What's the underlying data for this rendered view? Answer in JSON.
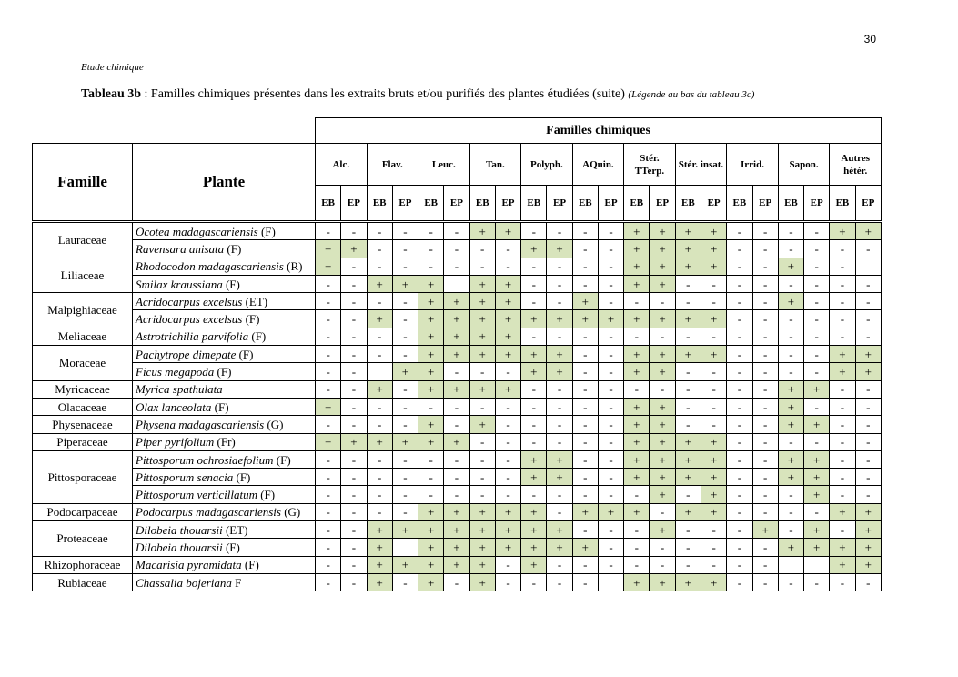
{
  "page_number": "30",
  "running_header": "Etude chimique",
  "caption": {
    "label": "Tableau 3b",
    "text": ": Familles chimiques présentes dans les extraits bruts et/ou purifiés des plantes étudiées (suite)",
    "note": "(Légende au bas du tableau 3c)"
  },
  "table": {
    "header": {
      "family": "Famille",
      "plant": "Plante",
      "group_title": "Familles chimiques",
      "groups": [
        "Alc.",
        "Flav.",
        "Leuc.",
        "Tan.",
        "Polyph.",
        "AQuin.",
        "Stér. TTerp.",
        "Stér. insat.",
        "Irrid.",
        "Sapon.",
        "Autres hétér."
      ],
      "sub": [
        "EB",
        "EP"
      ]
    },
    "families": [
      {
        "name": "Lauraceae",
        "plants": [
          {
            "name": "Ocotea madagascariensis",
            "part": "(F)",
            "cells": [
              "-",
              "-",
              "-",
              "-",
              "-",
              "-",
              "+",
              "+",
              "-",
              "-",
              "-",
              "-",
              "+",
              "+",
              "+",
              "+",
              "-",
              "-",
              "-",
              "-",
              "+",
              "+"
            ]
          },
          {
            "name": "Ravensara anisata",
            "part": "(F)",
            "cells": [
              "+",
              "+",
              "-",
              "-",
              "-",
              "-",
              "-",
              "-",
              "+",
              "+",
              "-",
              "-",
              "+",
              "+",
              "+",
              "+",
              "-",
              "-",
              "-",
              "-",
              "-",
              "-"
            ]
          }
        ]
      },
      {
        "name": "Liliaceae",
        "plants": [
          {
            "name": "Rhodocodon madagascariensis",
            "part": "(R)",
            "cells": [
              "+",
              "-",
              "-",
              "-",
              "-",
              "-",
              "-",
              "-",
              "-",
              "-",
              "-",
              "-",
              "+",
              "+",
              "+",
              "+",
              "-",
              "-",
              "+",
              "-",
              "-",
              null
            ]
          },
          {
            "name": "Smilax kraussiana",
            "part": "(F)",
            "cells": [
              "-",
              "-",
              "+",
              "+",
              "+",
              null,
              "+",
              "+",
              "-",
              "-",
              "-",
              "-",
              "+",
              "+",
              "-",
              "-",
              "-",
              "-",
              "-",
              "-",
              "-",
              "-"
            ]
          }
        ]
      },
      {
        "name": "Malpighiaceae",
        "plants": [
          {
            "name": "Acridocarpus excelsus",
            "part": "(ET)",
            "cells": [
              "-",
              "-",
              "-",
              "-",
              "+",
              "+",
              "+",
              "+",
              "-",
              "-",
              "+",
              "-",
              "-",
              "-",
              "-",
              "-",
              "-",
              "-",
              "+",
              "-",
              "-",
              "-"
            ]
          },
          {
            "name": "Acridocarpus excelsus",
            "part": "(F)",
            "cells": [
              "-",
              "-",
              "+",
              "-",
              "+",
              "+",
              "+",
              "+",
              "+",
              "+",
              "+",
              "+",
              "+",
              "+",
              "+",
              "+",
              "-",
              "-",
              "-",
              "-",
              "-",
              "-"
            ]
          }
        ]
      },
      {
        "name": "Meliaceae",
        "plants": [
          {
            "name": "Astrotrichilia parvifolia",
            "part": "(F)",
            "cells": [
              "-",
              "-",
              "-",
              "-",
              "+",
              "+",
              "+",
              "+",
              "-",
              "-",
              "-",
              "-",
              "-",
              "-",
              "-",
              "-",
              "-",
              "-",
              "-",
              "-",
              "-",
              "-"
            ]
          }
        ]
      },
      {
        "name": "Moraceae",
        "plants": [
          {
            "name": "Pachytrope dimepate",
            "part": "(F)",
            "cells": [
              "-",
              "-",
              "-",
              "-",
              "+",
              "+",
              "+",
              "+",
              "+",
              "+",
              "-",
              "-",
              "+",
              "+",
              "+",
              "+",
              "-",
              "-",
              "-",
              "-",
              "+",
              "+"
            ]
          },
          {
            "name": "Ficus megapoda",
            "part": "(F)",
            "cells": [
              "-",
              "-",
              null,
              "+",
              "+",
              "-",
              "-",
              "-",
              "+",
              "+",
              "-",
              "-",
              "+",
              "+",
              "-",
              "-",
              "-",
              "-",
              "-",
              "-",
              "+",
              "+"
            ]
          }
        ]
      },
      {
        "name": "Myricaceae",
        "plants": [
          {
            "name": "Myrica spathulata",
            "cells": [
              "-",
              "-",
              "+",
              "-",
              "+",
              "+",
              "+",
              "+",
              "-",
              "-",
              "-",
              "-",
              "-",
              "-",
              "-",
              "-",
              "-",
              "-",
              "+",
              "+",
              "-",
              "-"
            ]
          }
        ]
      },
      {
        "name": "Olacaceae",
        "plants": [
          {
            "name": "Olax lanceolata",
            "part": "(F)",
            "cells": [
              "+",
              "-",
              "-",
              "-",
              "-",
              "-",
              "-",
              "-",
              "-",
              "-",
              "-",
              "-",
              "+",
              "+",
              "-",
              "-",
              "-",
              "-",
              "+",
              "-",
              "-",
              "-"
            ]
          }
        ]
      },
      {
        "name": "Physenaceae",
        "plants": [
          {
            "name": "Physena madagascariensis",
            "part": "(G)",
            "cells": [
              "-",
              "-",
              "-",
              "-",
              "+",
              "-",
              "+",
              "-",
              "-",
              "-",
              "-",
              "-",
              "+",
              "+",
              "-",
              "-",
              "-",
              "-",
              "+",
              "+",
              "-",
              "-"
            ]
          }
        ]
      },
      {
        "name": "Piperaceae",
        "plants": [
          {
            "name": "Piper pyrifolium",
            "part": "(Fr)",
            "cells": [
              "+",
              "+",
              "+",
              "+",
              "+",
              "+",
              "-",
              "-",
              "-",
              "-",
              "-",
              "-",
              "+",
              "+",
              "+",
              "+",
              "-",
              "-",
              "-",
              "-",
              "-",
              "-"
            ]
          }
        ]
      },
      {
        "name": "Pittosporaceae",
        "plants": [
          {
            "name": "Pittosporum ochrosiaefolium",
            "part": "(F)",
            "cells": [
              "-",
              "-",
              "-",
              "-",
              "-",
              "-",
              "-",
              "-",
              "+",
              "+",
              "-",
              "-",
              "+",
              "+",
              "+",
              "+",
              "-",
              "-",
              "+",
              "+",
              "-",
              "-"
            ]
          },
          {
            "name": "Pittosporum senacia",
            "part": "(F)",
            "cells": [
              "-",
              "-",
              "-",
              "-",
              "-",
              "-",
              "-",
              "-",
              "+",
              "+",
              "-",
              "-",
              "+",
              "+",
              "+",
              "+",
              "-",
              "-",
              "+",
              "+",
              "-",
              "-"
            ]
          },
          {
            "name": "Pittosporum verticillatum",
            "part": "(F)",
            "cells": [
              "-",
              "-",
              "-",
              "-",
              "-",
              "-",
              "-",
              "-",
              "-",
              "-",
              "-",
              "-",
              "-",
              "+",
              "-",
              "+",
              "-",
              "-",
              "-",
              "+",
              "-",
              "-"
            ]
          }
        ]
      },
      {
        "name": "Podocarpaceae",
        "plants": [
          {
            "name": "Podocarpus madagascariensis",
            "part": "(G)",
            "cells": [
              "-",
              "-",
              "-",
              "-",
              "+",
              "+",
              "+",
              "+",
              "+",
              "-",
              "+",
              "+",
              "+",
              "-",
              "+",
              "+",
              "-",
              "-",
              "-",
              "-",
              "+",
              "+"
            ]
          }
        ]
      },
      {
        "name": "Proteaceae",
        "plants": [
          {
            "name": "Dilobeia thouarsii",
            "part": "(ET)",
            "cells": [
              "-",
              "-",
              "+",
              "+",
              "+",
              "+",
              "+",
              "+",
              "+",
              "+",
              "-",
              "-",
              "-",
              "+",
              "-",
              "-",
              "-",
              "+",
              "-",
              "+",
              "-",
              "+"
            ]
          },
          {
            "name": "Dilobeia thouarsii",
            "part": "(F)",
            "cells": [
              "-",
              "-",
              "+",
              null,
              "+",
              "+",
              "+",
              "+",
              "+",
              "+",
              "+",
              "-",
              "-",
              "-",
              "-",
              "-",
              "-",
              "-",
              "+",
              "+",
              "+",
              "+"
            ]
          }
        ]
      },
      {
        "name": "Rhizophoraceae",
        "plants": [
          {
            "name": "Macarisia pyramidata",
            "part": "(F)",
            "cells": [
              "-",
              "-",
              "+",
              "+",
              "+",
              "+",
              "+",
              "-",
              "+",
              "-",
              "-",
              "-",
              "-",
              "-",
              "-",
              "-",
              "-",
              "-",
              null,
              null,
              "+",
              "+"
            ]
          }
        ]
      },
      {
        "name": "Rubiaceae",
        "plants": [
          {
            "name": "Chassalia bojeriana",
            "part": "F",
            "cells": [
              "-",
              "-",
              "+",
              "-",
              "+",
              "-",
              "+",
              "-",
              "-",
              "-",
              "-",
              null,
              "+",
              "+",
              "+",
              "+",
              "-",
              "-",
              "-",
              "-",
              "-",
              "-"
            ]
          }
        ]
      }
    ]
  }
}
